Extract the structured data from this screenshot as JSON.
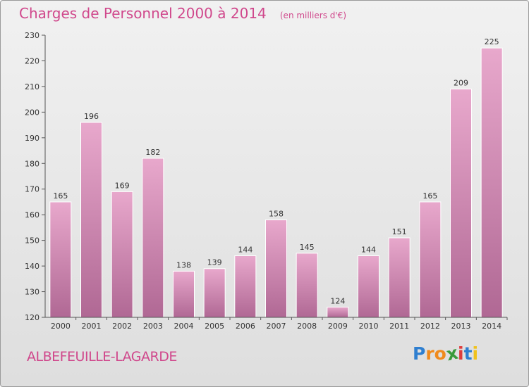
{
  "title": "Charges de Personnel 2000 à 2014",
  "subtitle": "(en milliers d'€)",
  "commune": "ALBEFEUILLE-LAGARDE",
  "logo": {
    "text": "Proxiti",
    "letters": [
      {
        "char": "P",
        "color": "#2f7fd0"
      },
      {
        "char": "r",
        "color": "#f08a1c"
      },
      {
        "char": "o",
        "color": "#f08a1c"
      },
      {
        "char": "x",
        "color": "#3a9a3a"
      },
      {
        "char": "i",
        "color": "#e03c3c"
      },
      {
        "char": "t",
        "color": "#2f7fd0"
      },
      {
        "char": "i",
        "color": "#f0c21c"
      }
    ]
  },
  "colors": {
    "accent": "#d0488c",
    "bar_light": "#e8a8cc",
    "bar_dark": "#b06894"
  },
  "chart_data": {
    "type": "bar",
    "title": "Charges de Personnel 2000 à 2014",
    "xlabel": "",
    "ylabel": "",
    "categories": [
      "2000",
      "2001",
      "2002",
      "2003",
      "2004",
      "2005",
      "2006",
      "2007",
      "2008",
      "2009",
      "2010",
      "2011",
      "2012",
      "2013",
      "2014"
    ],
    "values": [
      165,
      196,
      169,
      182,
      138,
      139,
      144,
      158,
      145,
      124,
      144,
      151,
      165,
      209,
      225
    ],
    "ylim": [
      120,
      230
    ],
    "yticks": [
      120,
      130,
      140,
      150,
      160,
      170,
      180,
      190,
      200,
      210,
      220,
      230
    ],
    "grid": false,
    "legend": "none"
  }
}
